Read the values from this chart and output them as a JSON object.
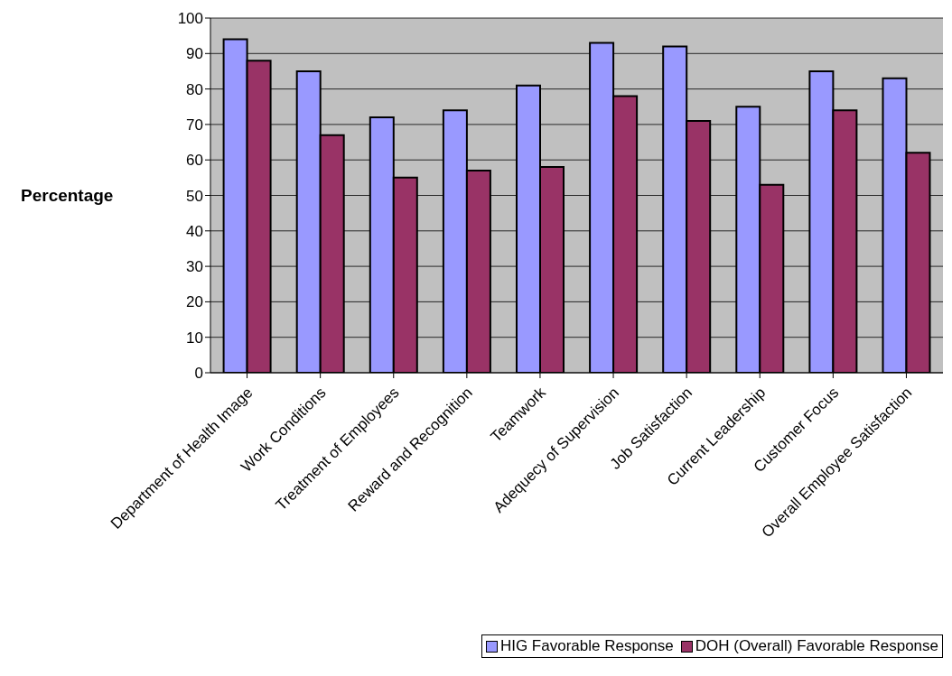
{
  "chart_data": {
    "type": "bar",
    "ylabel": "Percentage",
    "categories": [
      "Department of Health Image",
      "Work Conditions",
      "Treatment of Employees",
      "Reward and Recognition",
      "Teamwork",
      "Adequecy of Supervision",
      "Job Satisfaction",
      "Current Leadership",
      "Customer Focus",
      "Overall Employee Satisfaction"
    ],
    "series": [
      {
        "name": "HIG Favorable Response",
        "color": "#9999ff",
        "values": [
          94,
          85,
          72,
          74,
          81,
          93,
          92,
          75,
          85,
          83
        ]
      },
      {
        "name": "DOH (Overall) Favorable Response",
        "color": "#993366",
        "values": [
          88,
          67,
          55,
          57,
          58,
          78,
          71,
          53,
          74,
          62
        ]
      }
    ],
    "ylim": [
      0,
      100
    ],
    "yticks": [
      0,
      10,
      20,
      30,
      40,
      50,
      60,
      70,
      80,
      90,
      100
    ],
    "grid": "y",
    "legend": "bottom right"
  }
}
